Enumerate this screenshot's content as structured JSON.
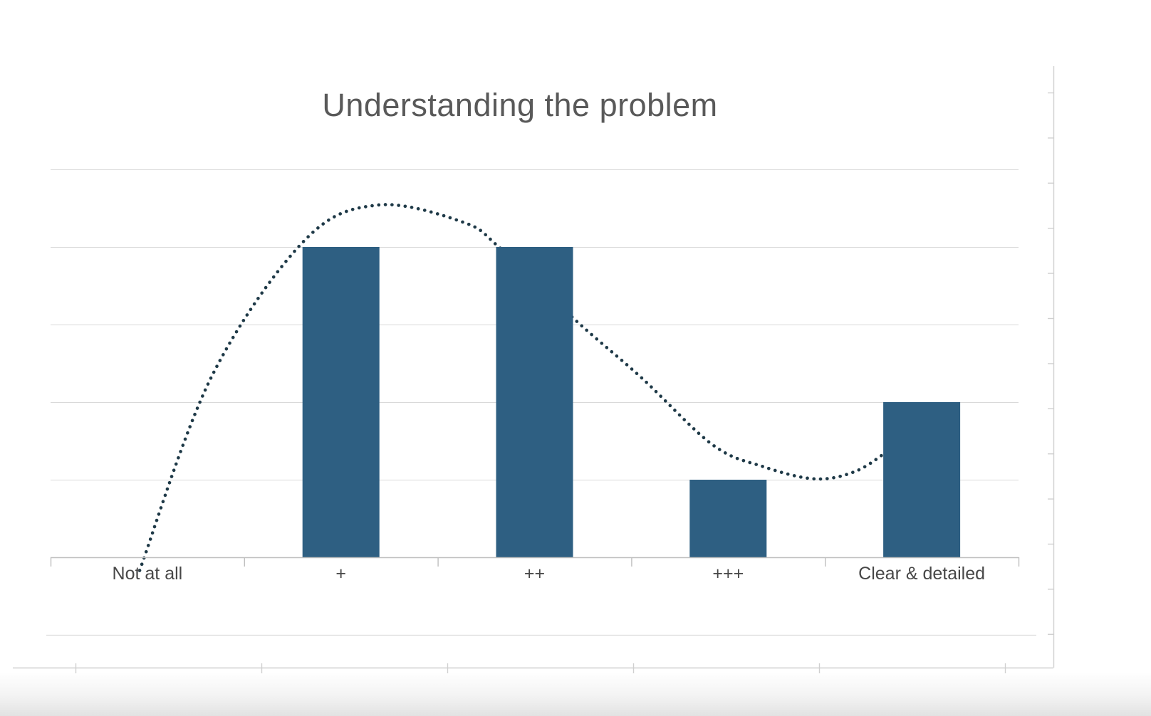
{
  "page": {
    "background": "#ffffff"
  },
  "chart_data": {
    "type": "bar",
    "title": "Understanding the problem",
    "categories": [
      "Not at all",
      "+",
      "++",
      "+++",
      "Clear & detailed"
    ],
    "values": [
      0,
      4,
      4,
      1,
      2
    ],
    "ylim": [
      0,
      5
    ],
    "gridline_step": 1,
    "grid": "horizontal gridlines on, y tick labels hidden, no legend",
    "legend_position": "none",
    "bar_color": "#2E5F82",
    "title_color": "#595959",
    "label_color": "#474747",
    "gridline_color": "#D9D9D9",
    "axis_color": "#BFBFBF",
    "trendline": {
      "style": "dotted-smooth",
      "color": "#1E3947",
      "description": "smoothed dotted trendline drawn behind bars, dips below zero at first category, peaks ~4.5 after '+', minimum ~0.9 before last category, rises into last bar",
      "points_cat_val": [
        [
          -0.04,
          -0.17
        ],
        [
          0.33,
          2.32
        ],
        [
          0.81,
          4.08
        ],
        [
          1.19,
          4.54
        ],
        [
          1.63,
          4.32
        ],
        [
          1.82,
          3.99
        ],
        [
          2.21,
          3.06
        ],
        [
          2.55,
          2.32
        ],
        [
          2.92,
          1.45
        ],
        [
          3.18,
          1.17
        ],
        [
          3.45,
          1.01
        ],
        [
          3.66,
          1.11
        ],
        [
          3.83,
          1.38
        ]
      ]
    }
  },
  "frame": {
    "description": "faint ruler/axis lines of surrounding page frame",
    "line_color": "#d0d0d0",
    "upper_line_color": "#dcdcdc",
    "bottom_band_color": "#e2e2e2"
  }
}
